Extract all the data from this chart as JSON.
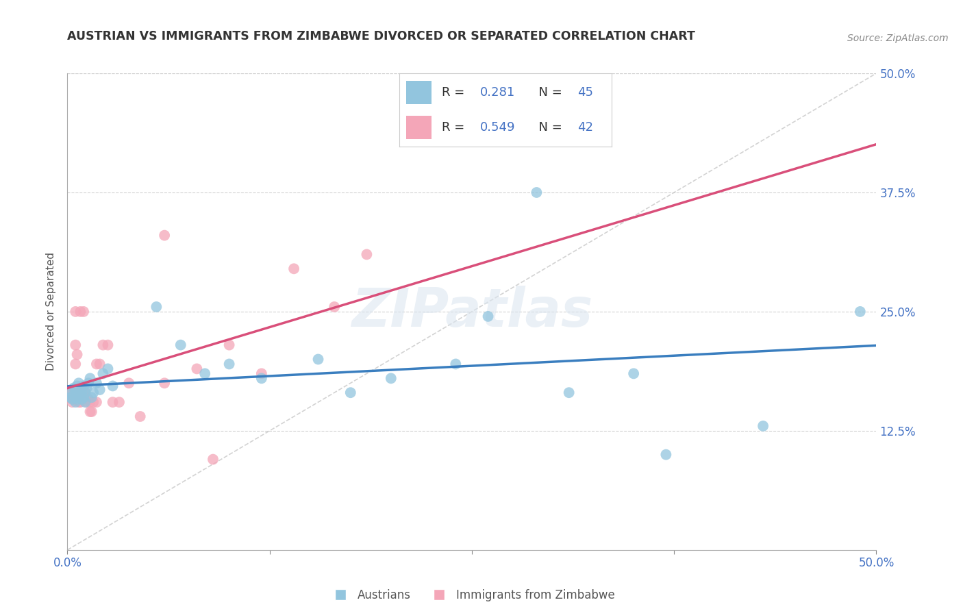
{
  "title": "AUSTRIAN VS IMMIGRANTS FROM ZIMBABWE DIVORCED OR SEPARATED CORRELATION CHART",
  "source": "Source: ZipAtlas.com",
  "ylabel": "Divorced or Separated",
  "xlim": [
    0.0,
    0.5
  ],
  "ylim": [
    0.0,
    0.5
  ],
  "xtick_vals": [
    0.0,
    0.125,
    0.25,
    0.375,
    0.5
  ],
  "ytick_vals": [
    0.125,
    0.25,
    0.375,
    0.5
  ],
  "right_ytick_labels": [
    "12.5%",
    "25.0%",
    "37.5%",
    "50.0%"
  ],
  "right_ytick_vals": [
    0.125,
    0.25,
    0.375,
    0.5
  ],
  "austrians_R": 0.281,
  "austrians_N": 45,
  "zimbabwe_R": 0.549,
  "zimbabwe_N": 42,
  "austrian_color": "#92c5de",
  "zimbabwe_color": "#f4a6b8",
  "austrian_line_color": "#3a7ebf",
  "zimbabwe_line_color": "#d94f7a",
  "diagonal_color": "#c8c8c8",
  "legend_label_1": "Austrians",
  "legend_label_2": "Immigrants from Zimbabwe",
  "R_color": "#4472c4",
  "N_color": "#4472c4",
  "austrians_x": [
    0.001,
    0.002,
    0.003,
    0.004,
    0.004,
    0.005,
    0.005,
    0.006,
    0.006,
    0.007,
    0.007,
    0.008,
    0.008,
    0.009,
    0.009,
    0.01,
    0.01,
    0.011,
    0.011,
    0.012,
    0.013,
    0.014,
    0.015,
    0.016,
    0.018,
    0.02,
    0.022,
    0.025,
    0.028,
    0.055,
    0.07,
    0.085,
    0.1,
    0.12,
    0.155,
    0.175,
    0.2,
    0.24,
    0.26,
    0.29,
    0.31,
    0.35,
    0.37,
    0.43,
    0.49
  ],
  "austrians_y": [
    0.165,
    0.16,
    0.158,
    0.162,
    0.17,
    0.155,
    0.168,
    0.158,
    0.172,
    0.16,
    0.175,
    0.163,
    0.17,
    0.158,
    0.165,
    0.16,
    0.172,
    0.165,
    0.155,
    0.17,
    0.175,
    0.18,
    0.16,
    0.165,
    0.175,
    0.168,
    0.185,
    0.19,
    0.172,
    0.255,
    0.215,
    0.185,
    0.195,
    0.18,
    0.2,
    0.165,
    0.18,
    0.195,
    0.245,
    0.375,
    0.165,
    0.185,
    0.1,
    0.13,
    0.25
  ],
  "zimbabwe_x": [
    0.001,
    0.002,
    0.003,
    0.003,
    0.004,
    0.005,
    0.005,
    0.006,
    0.007,
    0.007,
    0.008,
    0.008,
    0.009,
    0.01,
    0.011,
    0.012,
    0.013,
    0.014,
    0.015,
    0.016,
    0.018,
    0.02,
    0.022,
    0.025,
    0.028,
    0.032,
    0.038,
    0.045,
    0.06,
    0.08,
    0.1,
    0.12,
    0.14,
    0.165,
    0.185,
    0.005,
    0.008,
    0.01,
    0.014,
    0.018,
    0.06,
    0.09
  ],
  "zimbabwe_y": [
    0.165,
    0.16,
    0.155,
    0.165,
    0.158,
    0.215,
    0.195,
    0.205,
    0.155,
    0.165,
    0.155,
    0.163,
    0.17,
    0.163,
    0.165,
    0.155,
    0.158,
    0.155,
    0.145,
    0.155,
    0.155,
    0.195,
    0.215,
    0.215,
    0.155,
    0.155,
    0.175,
    0.14,
    0.175,
    0.19,
    0.215,
    0.185,
    0.295,
    0.255,
    0.31,
    0.25,
    0.25,
    0.25,
    0.145,
    0.195,
    0.33,
    0.095
  ]
}
